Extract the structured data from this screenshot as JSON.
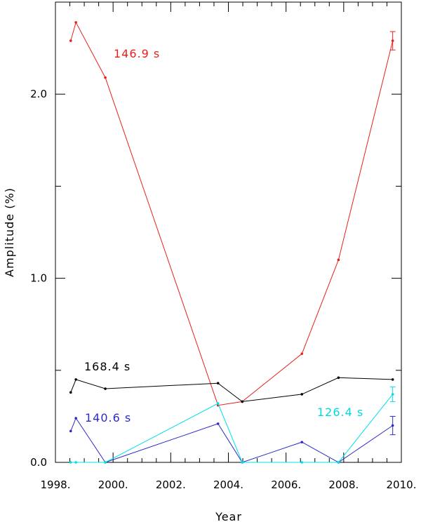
{
  "chart_data": {
    "type": "line",
    "xlabel": "Year",
    "ylabel": "Amplitude (%)",
    "xlim": [
      1998,
      2010
    ],
    "ylim": [
      0,
      2.5
    ],
    "xticks": [
      {
        "v": 1998,
        "label": "1998."
      },
      {
        "v": 2000,
        "label": "2000."
      },
      {
        "v": 2002,
        "label": "2002."
      },
      {
        "v": 2004,
        "label": "2004."
      },
      {
        "v": 2006,
        "label": "2006."
      },
      {
        "v": 2008,
        "label": "2008."
      },
      {
        "v": 2010,
        "label": "2010."
      }
    ],
    "yticks": [
      {
        "v": 0.0,
        "label": "0.0"
      },
      {
        "v": 1.0,
        "label": "1.0"
      },
      {
        "v": 2.0,
        "label": "2.0"
      }
    ],
    "grid": false,
    "series": [
      {
        "name": "146.9 s",
        "color": "#e8201c",
        "x": [
          1998.53,
          1998.71,
          1999.73,
          2003.64,
          2004.48,
          2006.55,
          2007.82,
          2009.7
        ],
        "y": [
          2.29,
          2.39,
          2.09,
          0.31,
          0.33,
          0.59,
          1.1,
          2.29
        ],
        "error_bars": [
          {
            "x": 2009.7,
            "lo": 2.24,
            "hi": 2.34
          }
        ]
      },
      {
        "name": "168.4 s",
        "color": "#000000",
        "x": [
          1998.53,
          1998.71,
          1999.73,
          2003.64,
          2004.48,
          2006.55,
          2007.82,
          2009.7
        ],
        "y": [
          0.38,
          0.45,
          0.4,
          0.43,
          0.33,
          0.37,
          0.46,
          0.45
        ],
        "error_bars": []
      },
      {
        "name": "140.6 s",
        "color": "#2b2bc8",
        "x": [
          1998.53,
          1998.71,
          1999.73,
          2003.64,
          2004.48,
          2006.55,
          2007.82,
          2009.7
        ],
        "y": [
          0.17,
          0.24,
          0.0,
          0.21,
          0.0,
          0.11,
          0.0,
          0.2
        ],
        "error_bars": [
          {
            "x": 2009.7,
            "lo": 0.15,
            "hi": 0.25
          }
        ]
      },
      {
        "name": "126.4 s",
        "color": "#00e0e8",
        "x": [
          1998.53,
          1998.71,
          1999.73,
          2003.64,
          2004.48,
          2006.55,
          2007.82,
          2009.7
        ],
        "y": [
          0.0,
          0.0,
          0.0,
          0.32,
          0.0,
          0.0,
          0.0,
          0.37
        ],
        "error_bars": [
          {
            "x": 2009.7,
            "lo": 0.33,
            "hi": 0.41
          }
        ]
      }
    ]
  }
}
